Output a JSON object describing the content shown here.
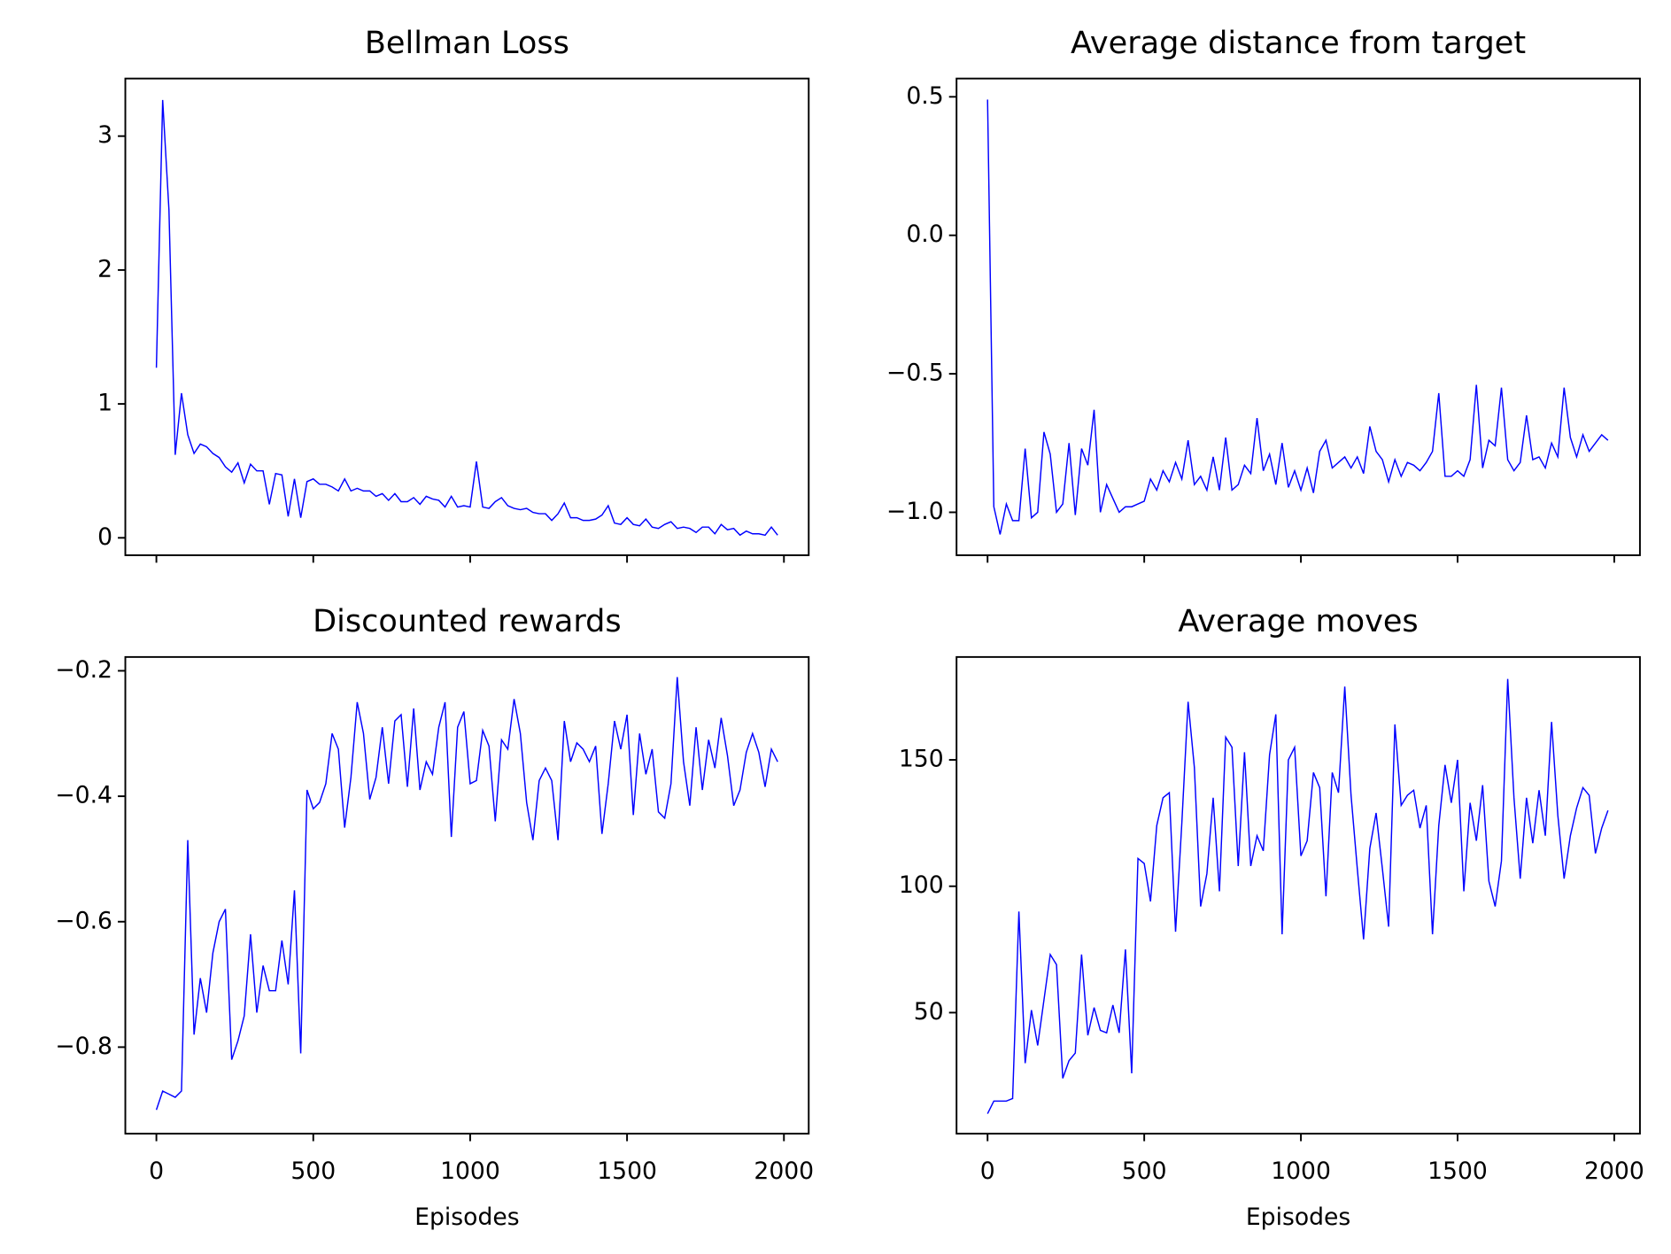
{
  "chart_data": [
    {
      "type": "line",
      "title": "Bellman Loss",
      "color": "#0000ff",
      "xticklabels": false,
      "x": [
        0,
        20,
        40,
        60,
        80,
        100,
        120,
        140,
        160,
        180,
        200,
        220,
        240,
        260,
        280,
        300,
        320,
        340,
        360,
        380,
        400,
        420,
        440,
        460,
        480,
        500,
        520,
        540,
        560,
        580,
        600,
        620,
        640,
        660,
        680,
        700,
        720,
        740,
        760,
        780,
        800,
        820,
        840,
        860,
        880,
        900,
        920,
        940,
        960,
        980,
        1000,
        1020,
        1040,
        1060,
        1080,
        1100,
        1120,
        1140,
        1160,
        1180,
        1200,
        1220,
        1240,
        1260,
        1280,
        1300,
        1320,
        1340,
        1360,
        1380,
        1400,
        1420,
        1440,
        1460,
        1480,
        1500,
        1520,
        1540,
        1560,
        1580,
        1600,
        1620,
        1640,
        1660,
        1680,
        1700,
        1720,
        1740,
        1760,
        1780,
        1800,
        1820,
        1840,
        1860,
        1880,
        1900,
        1920,
        1940,
        1960,
        1980
      ],
      "values": [
        1.27,
        3.27,
        2.45,
        0.62,
        1.08,
        0.77,
        0.63,
        0.7,
        0.68,
        0.63,
        0.6,
        0.53,
        0.49,
        0.56,
        0.41,
        0.55,
        0.5,
        0.5,
        0.25,
        0.48,
        0.47,
        0.16,
        0.44,
        0.15,
        0.42,
        0.44,
        0.4,
        0.4,
        0.38,
        0.35,
        0.44,
        0.35,
        0.37,
        0.35,
        0.35,
        0.31,
        0.33,
        0.28,
        0.33,
        0.27,
        0.27,
        0.3,
        0.25,
        0.31,
        0.29,
        0.28,
        0.23,
        0.31,
        0.23,
        0.24,
        0.23,
        0.57,
        0.23,
        0.22,
        0.27,
        0.3,
        0.24,
        0.22,
        0.21,
        0.22,
        0.19,
        0.18,
        0.18,
        0.13,
        0.18,
        0.26,
        0.15,
        0.15,
        0.13,
        0.13,
        0.14,
        0.17,
        0.24,
        0.11,
        0.1,
        0.15,
        0.1,
        0.09,
        0.14,
        0.08,
        0.07,
        0.1,
        0.12,
        0.07,
        0.08,
        0.07,
        0.04,
        0.08,
        0.08,
        0.03,
        0.1,
        0.06,
        0.07,
        0.02,
        0.05,
        0.03,
        0.03,
        0.02,
        0.08,
        0.02
      ],
      "xlim": [
        -99,
        2079
      ],
      "xticks": [
        0,
        500,
        1000,
        1500,
        2000
      ],
      "ylim": [
        -0.13,
        3.43
      ],
      "yticks": [
        0,
        1,
        2,
        3
      ]
    },
    {
      "type": "line",
      "title": "Average distance from target",
      "color": "#0000ff",
      "xticklabels": false,
      "x": [
        0,
        20,
        40,
        60,
        80,
        100,
        120,
        140,
        160,
        180,
        200,
        220,
        240,
        260,
        280,
        300,
        320,
        340,
        360,
        380,
        400,
        420,
        440,
        460,
        480,
        500,
        520,
        540,
        560,
        580,
        600,
        620,
        640,
        660,
        680,
        700,
        720,
        740,
        760,
        780,
        800,
        820,
        840,
        860,
        880,
        900,
        920,
        940,
        960,
        980,
        1000,
        1020,
        1040,
        1060,
        1080,
        1100,
        1120,
        1140,
        1160,
        1180,
        1200,
        1220,
        1240,
        1260,
        1280,
        1300,
        1320,
        1340,
        1360,
        1380,
        1400,
        1420,
        1440,
        1460,
        1480,
        1500,
        1520,
        1540,
        1560,
        1580,
        1600,
        1620,
        1640,
        1660,
        1680,
        1700,
        1720,
        1740,
        1760,
        1780,
        1800,
        1820,
        1840,
        1860,
        1880,
        1900,
        1920,
        1940,
        1960,
        1980
      ],
      "values": [
        0.49,
        -0.98,
        -1.08,
        -0.97,
        -1.03,
        -1.03,
        -0.77,
        -1.02,
        -1.0,
        -0.71,
        -0.79,
        -1.0,
        -0.97,
        -0.75,
        -1.01,
        -0.77,
        -0.83,
        -0.63,
        -1.0,
        -0.9,
        -0.95,
        -1.0,
        -0.98,
        -0.98,
        -0.97,
        -0.96,
        -0.88,
        -0.92,
        -0.85,
        -0.89,
        -0.82,
        -0.88,
        -0.74,
        -0.9,
        -0.87,
        -0.92,
        -0.8,
        -0.92,
        -0.73,
        -0.92,
        -0.9,
        -0.83,
        -0.86,
        -0.66,
        -0.85,
        -0.79,
        -0.9,
        -0.75,
        -0.91,
        -0.85,
        -0.92,
        -0.84,
        -0.93,
        -0.78,
        -0.74,
        -0.84,
        -0.82,
        -0.8,
        -0.84,
        -0.8,
        -0.86,
        -0.69,
        -0.78,
        -0.81,
        -0.89,
        -0.81,
        -0.87,
        -0.82,
        -0.83,
        -0.85,
        -0.82,
        -0.78,
        -0.57,
        -0.87,
        -0.87,
        -0.85,
        -0.87,
        -0.81,
        -0.54,
        -0.84,
        -0.74,
        -0.76,
        -0.55,
        -0.81,
        -0.85,
        -0.82,
        -0.65,
        -0.81,
        -0.8,
        -0.84,
        -0.75,
        -0.8,
        -0.55,
        -0.73,
        -0.8,
        -0.72,
        -0.78,
        -0.75,
        -0.72,
        -0.74
      ],
      "xlim": [
        -99,
        2082
      ],
      "xticks": [
        0,
        500,
        1000,
        1500,
        2000
      ],
      "ylim": [
        -1.155,
        0.566
      ],
      "yticks": [
        0.5,
        {
          "value": 0,
          "label": "0.0"
        },
        {
          "value": -0.5,
          "label": "−0.5"
        },
        {
          "value": -1,
          "label": "−1.0"
        }
      ]
    },
    {
      "type": "line",
      "title": "Discounted rewards",
      "color": "#0000ff",
      "xlabel": "Episodes",
      "x": [
        0,
        20,
        40,
        60,
        80,
        100,
        120,
        140,
        160,
        180,
        200,
        220,
        240,
        260,
        280,
        300,
        320,
        340,
        360,
        380,
        400,
        420,
        440,
        460,
        480,
        500,
        520,
        540,
        560,
        580,
        600,
        620,
        640,
        660,
        680,
        700,
        720,
        740,
        760,
        780,
        800,
        820,
        840,
        860,
        880,
        900,
        920,
        940,
        960,
        980,
        1000,
        1020,
        1040,
        1060,
        1080,
        1100,
        1120,
        1140,
        1160,
        1180,
        1200,
        1220,
        1240,
        1260,
        1280,
        1300,
        1320,
        1340,
        1360,
        1380,
        1400,
        1420,
        1440,
        1460,
        1480,
        1500,
        1520,
        1540,
        1560,
        1580,
        1600,
        1620,
        1640,
        1660,
        1680,
        1700,
        1720,
        1740,
        1760,
        1780,
        1800,
        1820,
        1840,
        1860,
        1880,
        1900,
        1920,
        1940,
        1960,
        1980
      ],
      "values": [
        -0.9,
        -0.87,
        -0.875,
        -0.88,
        -0.87,
        -0.47,
        -0.78,
        -0.69,
        -0.745,
        -0.65,
        -0.6,
        -0.58,
        -0.82,
        -0.79,
        -0.75,
        -0.62,
        -0.745,
        -0.67,
        -0.71,
        -0.71,
        -0.63,
        -0.7,
        -0.55,
        -0.81,
        -0.39,
        -0.42,
        -0.41,
        -0.38,
        -0.3,
        -0.325,
        -0.45,
        -0.37,
        -0.25,
        -0.3,
        -0.405,
        -0.37,
        -0.29,
        -0.38,
        -0.28,
        -0.27,
        -0.385,
        -0.26,
        -0.39,
        -0.345,
        -0.365,
        -0.29,
        -0.25,
        -0.465,
        -0.29,
        -0.265,
        -0.38,
        -0.375,
        -0.295,
        -0.32,
        -0.44,
        -0.31,
        -0.325,
        -0.245,
        -0.3,
        -0.41,
        -0.47,
        -0.375,
        -0.355,
        -0.375,
        -0.47,
        -0.28,
        -0.345,
        -0.315,
        -0.325,
        -0.345,
        -0.32,
        -0.46,
        -0.38,
        -0.28,
        -0.325,
        -0.27,
        -0.43,
        -0.3,
        -0.365,
        -0.325,
        -0.425,
        -0.435,
        -0.38,
        -0.21,
        -0.345,
        -0.415,
        -0.29,
        -0.39,
        -0.31,
        -0.355,
        -0.275,
        -0.335,
        -0.415,
        -0.39,
        -0.33,
        -0.3,
        -0.33,
        -0.385,
        -0.325,
        -0.345
      ],
      "xlim": [
        -99,
        2079
      ],
      "xticks": [
        0,
        500,
        1000,
        1500,
        2000
      ],
      "ylim": [
        -0.938,
        -0.178
      ],
      "yticks": [
        {
          "value": -0.2,
          "label": "−0.2"
        },
        {
          "value": -0.4,
          "label": "−0.4"
        },
        {
          "value": -0.6,
          "label": "−0.6"
        },
        {
          "value": -0.8,
          "label": "−0.8"
        }
      ]
    },
    {
      "type": "line",
      "title": "Average moves",
      "color": "#0000ff",
      "xlabel": "Episodes",
      "x": [
        0,
        20,
        40,
        60,
        80,
        100,
        120,
        140,
        160,
        180,
        200,
        220,
        240,
        260,
        280,
        300,
        320,
        340,
        360,
        380,
        400,
        420,
        440,
        460,
        480,
        500,
        520,
        540,
        560,
        580,
        600,
        620,
        640,
        660,
        680,
        700,
        720,
        740,
        760,
        780,
        800,
        820,
        840,
        860,
        880,
        900,
        920,
        940,
        960,
        980,
        1000,
        1020,
        1040,
        1060,
        1080,
        1100,
        1120,
        1140,
        1160,
        1180,
        1200,
        1220,
        1240,
        1260,
        1280,
        1300,
        1320,
        1340,
        1360,
        1380,
        1400,
        1420,
        1440,
        1460,
        1480,
        1500,
        1520,
        1540,
        1560,
        1580,
        1600,
        1620,
        1640,
        1660,
        1680,
        1700,
        1720,
        1740,
        1760,
        1780,
        1800,
        1820,
        1840,
        1860,
        1880,
        1900,
        1920,
        1940,
        1960,
        1980
      ],
      "values": [
        10,
        15,
        15,
        15,
        16,
        90,
        30,
        51,
        37,
        55,
        73,
        69,
        24,
        31,
        34,
        73,
        41,
        52,
        43,
        42,
        53,
        42,
        75,
        26,
        111,
        109,
        94,
        124,
        135,
        137,
        82,
        125,
        173,
        147,
        92,
        105,
        135,
        98,
        159,
        155,
        108,
        153,
        108,
        120,
        114,
        152,
        168,
        81,
        150,
        155,
        112,
        118,
        145,
        139,
        96,
        145,
        137,
        179,
        136,
        107,
        79,
        115,
        129,
        107,
        84,
        164,
        132,
        136,
        138,
        123,
        132,
        81,
        124,
        148,
        133,
        150,
        98,
        133,
        118,
        140,
        102,
        92,
        110,
        182,
        135,
        103,
        135,
        117,
        138,
        120,
        165,
        128,
        103,
        120,
        131,
        139,
        136,
        113,
        123,
        130
      ],
      "xlim": [
        -99,
        2082
      ],
      "xticks": [
        0,
        500,
        1000,
        1500,
        2000
      ],
      "ylim": [
        2.1,
        190.7
      ],
      "yticks": [
        50,
        100,
        150
      ]
    }
  ]
}
